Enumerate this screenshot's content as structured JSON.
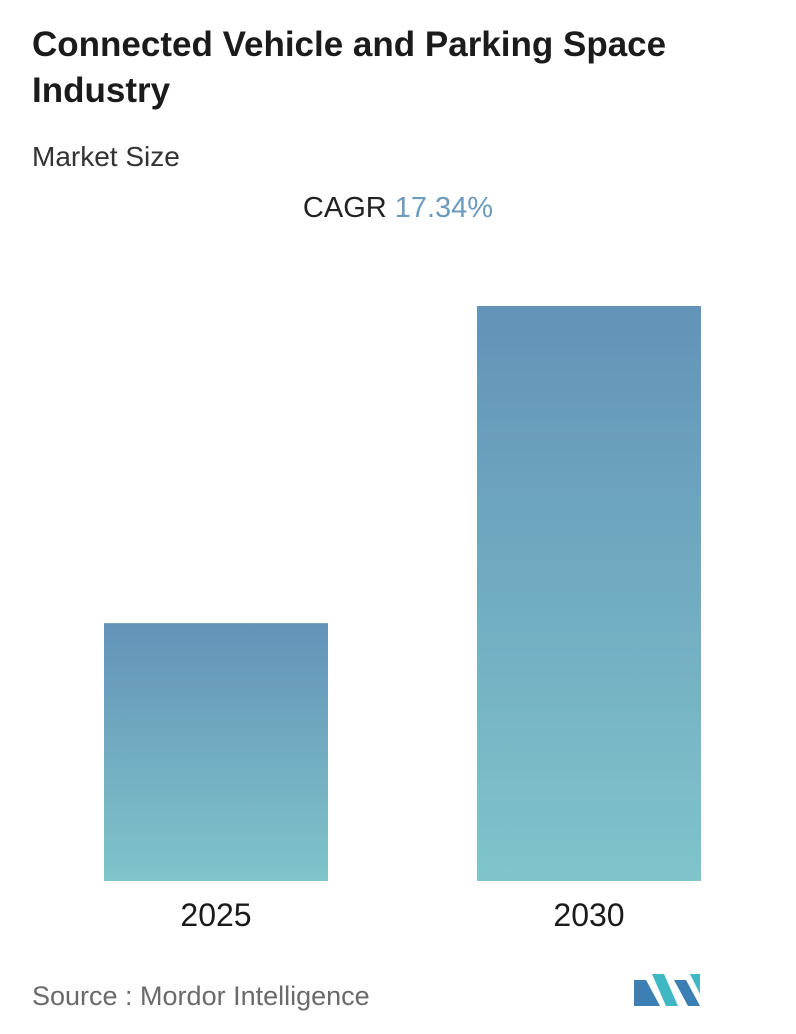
{
  "header": {
    "title": "Connected Vehicle and Parking Space Industry",
    "subtitle": "Market Size"
  },
  "cagr": {
    "label": "CAGR",
    "value": "17.34%"
  },
  "chart_data": {
    "type": "bar",
    "categories": [
      "2025",
      "2030"
    ],
    "values": [
      1,
      2.23
    ],
    "value_note": "relative bar heights; no value axis or data labels printed",
    "grid": false,
    "legend": "none",
    "colors": {
      "bar_top": "#6393b8",
      "bar_bottom": "#80c4ca"
    }
  },
  "footer": {
    "source": "Source :  Mordor Intelligence",
    "logo_icon": "mordor-intelligence-logo-icon",
    "logo_colors": [
      "#3c7fb5",
      "#3fb8c4"
    ]
  }
}
